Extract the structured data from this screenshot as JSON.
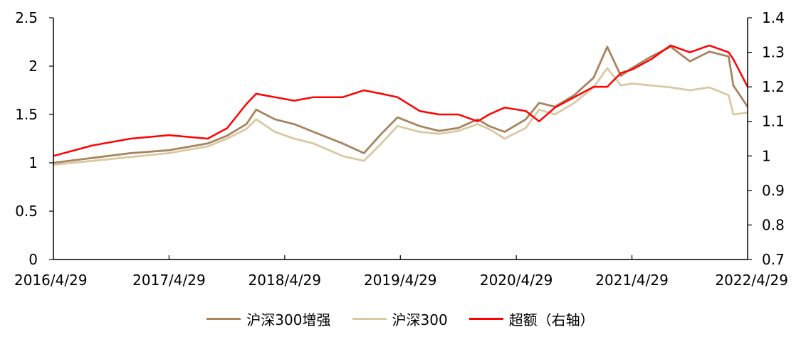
{
  "chart_data": {
    "type": "line",
    "title": "",
    "xlabel": "",
    "ylabel": "",
    "x_ticks": [
      "2016/4/29",
      "2017/4/29",
      "2018/4/29",
      "2019/4/29",
      "2020/4/29",
      "2021/4/29",
      "2022/4/29"
    ],
    "left_axis": {
      "ylim": [
        0,
        2.5
      ],
      "ticks": [
        "0",
        "0.5",
        "1",
        "1.5",
        "2",
        "2.5"
      ]
    },
    "right_axis": {
      "ylim": [
        0.7,
        1.4
      ],
      "ticks": [
        "0.7",
        "0.8",
        "0.9",
        "1",
        "1.1",
        "1.2",
        "1.3",
        "1.4"
      ]
    },
    "grid": false,
    "legend_position": "bottom",
    "series": [
      {
        "name": "沪深300增强",
        "axis": "left",
        "color": "#A6845E",
        "x": [
          "2016/4/29",
          "2016/8/29",
          "2016/12/29",
          "2017/4/29",
          "2017/8/29",
          "2017/10/29",
          "2017/12/29",
          "2018/1/29",
          "2018/3/29",
          "2018/5/29",
          "2018/7/29",
          "2018/10/29",
          "2019/1/4",
          "2019/2/28",
          "2019/4/20",
          "2019/6/29",
          "2019/8/29",
          "2019/10/29",
          "2019/12/29",
          "2020/2/3",
          "2020/3/23",
          "2020/5/29",
          "2020/7/10",
          "2020/8/29",
          "2020/10/29",
          "2020/12/29",
          "2021/2/10",
          "2021/3/25",
          "2021/4/29",
          "2021/6/29",
          "2021/8/29",
          "2021/10/29",
          "2021/12/29",
          "2022/2/28",
          "2022/3/15",
          "2022/4/29"
        ],
        "y": [
          1.0,
          1.05,
          1.1,
          1.13,
          1.2,
          1.28,
          1.4,
          1.55,
          1.45,
          1.4,
          1.32,
          1.2,
          1.1,
          1.3,
          1.47,
          1.38,
          1.33,
          1.36,
          1.45,
          1.38,
          1.32,
          1.45,
          1.62,
          1.58,
          1.7,
          1.88,
          2.2,
          1.9,
          1.98,
          2.1,
          2.2,
          2.05,
          2.15,
          2.1,
          1.8,
          1.58
        ]
      },
      {
        "name": "沪深300",
        "axis": "left",
        "color": "#D9C9A3",
        "x": [
          "2016/4/29",
          "2016/8/29",
          "2016/12/29",
          "2017/4/29",
          "2017/8/29",
          "2017/10/29",
          "2017/12/29",
          "2018/1/29",
          "2018/3/29",
          "2018/5/29",
          "2018/7/29",
          "2018/10/29",
          "2019/1/4",
          "2019/2/28",
          "2019/4/20",
          "2019/6/29",
          "2019/8/29",
          "2019/10/29",
          "2019/12/29",
          "2020/2/3",
          "2020/3/23",
          "2020/5/29",
          "2020/7/10",
          "2020/8/29",
          "2020/10/29",
          "2020/12/29",
          "2021/2/10",
          "2021/3/25",
          "2021/4/29",
          "2021/6/29",
          "2021/8/29",
          "2021/10/29",
          "2021/12/29",
          "2022/2/28",
          "2022/3/15",
          "2022/4/29"
        ],
        "y": [
          0.98,
          1.02,
          1.06,
          1.1,
          1.17,
          1.25,
          1.35,
          1.45,
          1.32,
          1.25,
          1.2,
          1.07,
          1.02,
          1.2,
          1.38,
          1.32,
          1.3,
          1.33,
          1.4,
          1.35,
          1.25,
          1.36,
          1.55,
          1.5,
          1.62,
          1.78,
          1.98,
          1.8,
          1.82,
          1.8,
          1.78,
          1.75,
          1.78,
          1.7,
          1.5,
          1.52
        ]
      },
      {
        "name": "超额（右轴）",
        "axis": "right",
        "color": "#FF0000",
        "x": [
          "2016/4/29",
          "2016/8/29",
          "2016/12/29",
          "2017/4/29",
          "2017/8/29",
          "2017/10/29",
          "2017/12/29",
          "2018/1/29",
          "2018/3/29",
          "2018/5/29",
          "2018/7/29",
          "2018/10/29",
          "2019/1/4",
          "2019/2/28",
          "2019/4/20",
          "2019/6/29",
          "2019/8/29",
          "2019/10/29",
          "2019/12/29",
          "2020/2/3",
          "2020/3/23",
          "2020/5/29",
          "2020/7/10",
          "2020/8/29",
          "2020/10/29",
          "2020/12/29",
          "2021/2/10",
          "2021/3/25",
          "2021/4/29",
          "2021/6/29",
          "2021/8/29",
          "2021/10/29",
          "2021/12/29",
          "2022/2/28",
          "2022/3/15",
          "2022/4/29"
        ],
        "y": [
          1.0,
          1.03,
          1.05,
          1.06,
          1.05,
          1.08,
          1.15,
          1.18,
          1.17,
          1.16,
          1.17,
          1.17,
          1.19,
          1.18,
          1.17,
          1.13,
          1.12,
          1.12,
          1.1,
          1.12,
          1.14,
          1.13,
          1.1,
          1.14,
          1.17,
          1.2,
          1.2,
          1.24,
          1.25,
          1.28,
          1.32,
          1.3,
          1.32,
          1.3,
          1.28,
          1.2
        ]
      }
    ]
  }
}
